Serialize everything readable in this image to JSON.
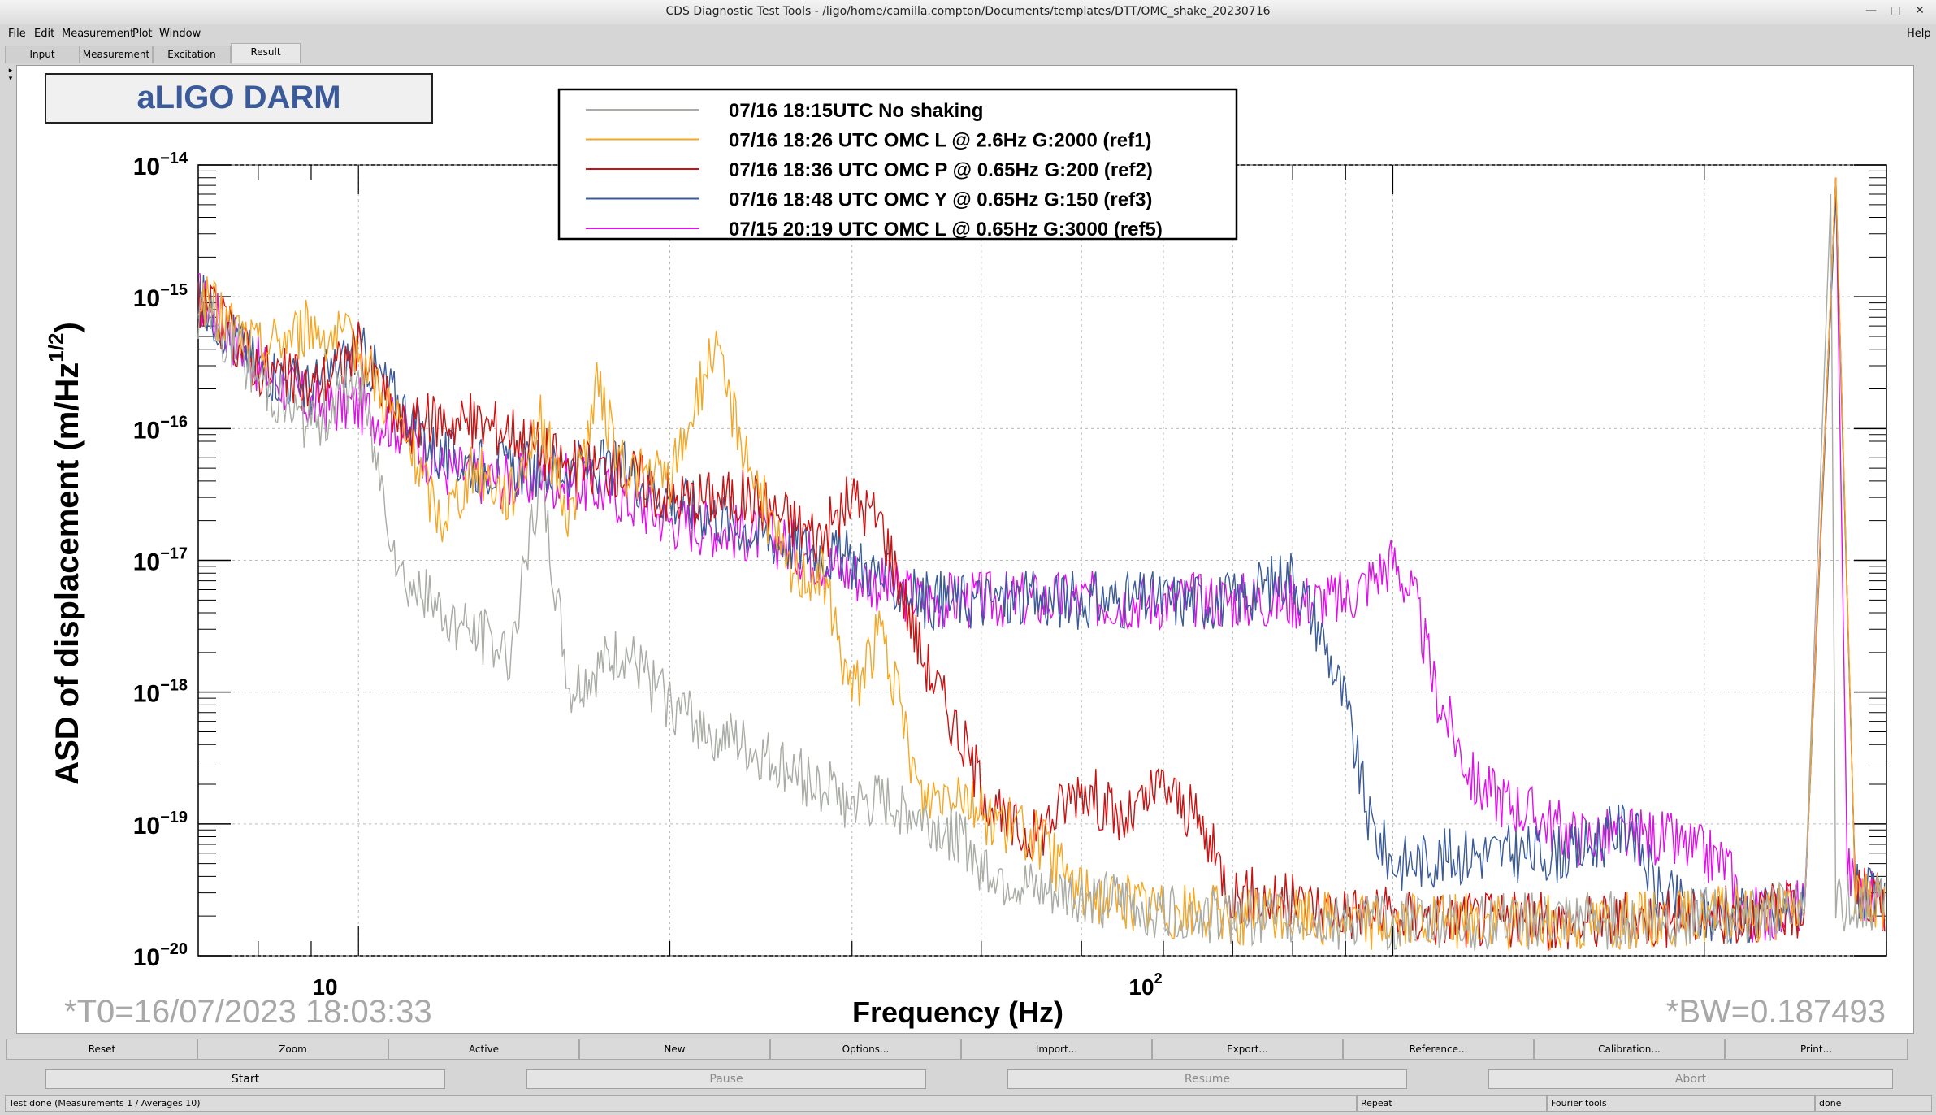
{
  "window": {
    "title": "CDS Diagnostic Test Tools - /ligo/home/camilla.compton/Documents/templates/DTT/OMC_shake_20230716",
    "btn_min": "—",
    "btn_max": "□",
    "btn_close": "✕"
  },
  "menubar": {
    "file": "File",
    "edit": "Edit",
    "measurement": "Measurement",
    "plot": "Plot",
    "window": "Window",
    "help": "Help"
  },
  "tabs": {
    "input": "Input",
    "measurement": "Measurement",
    "excitation": "Excitation",
    "result": "Result"
  },
  "plot": {
    "title_box": "aLIGO DARM",
    "xlabel": "Frequency (Hz)",
    "ylabel_main": "ASD of displacement (m/Hz",
    "ylabel_sup": "1/2",
    "ylabel_close": ")",
    "t0": "*T0=16/07/2023 18:03:33",
    "bw": "*BW=0.187493",
    "x_tick_10": "10",
    "x_tick_100_base": "10",
    "x_tick_100_exp": "2",
    "y_ticks": [
      {
        "exp": "−14",
        "v": -14
      },
      {
        "exp": "−15",
        "v": -15
      },
      {
        "exp": "−16",
        "v": -16
      },
      {
        "exp": "−17",
        "v": -17
      },
      {
        "exp": "−18",
        "v": -18
      },
      {
        "exp": "−19",
        "v": -19
      },
      {
        "exp": "−20",
        "v": -20
      }
    ],
    "y_tick_base": "10"
  },
  "chart_data": {
    "type": "line",
    "xscale": "log",
    "yscale": "log",
    "xlim": [
      7,
      300
    ],
    "ylim": [
      1e-20,
      1e-14
    ],
    "grid": true,
    "legend_position": "top-center",
    "series": [
      {
        "name": "07/16 18:15UTC No shaking",
        "color": "#a8aca4",
        "x": [
          7,
          8,
          9,
          10,
          11,
          12,
          14,
          15,
          16,
          18,
          20,
          22,
          25,
          28,
          30,
          33,
          38,
          40,
          45,
          50,
          60,
          70,
          80,
          90,
          100,
          120,
          150,
          200,
          250,
          265,
          268,
          272,
          280,
          300
        ],
        "y": [
          8e-16,
          2.5e-16,
          1e-16,
          2.5e-16,
          8e-18,
          4e-18,
          2e-18,
          4e-17,
          1e-18,
          2e-18,
          8e-19,
          5e-19,
          3e-19,
          2e-19,
          1.4e-19,
          1.4e-19,
          8e-20,
          5e-20,
          3e-20,
          2.8e-20,
          2.2e-20,
          2e-20,
          2e-20,
          1.8e-20,
          1.8e-20,
          1.8e-20,
          1.8e-20,
          2e-20,
          2.2e-20,
          6e-15,
          3e-20,
          2.5e-20,
          2.5e-20,
          2.5e-20
        ]
      },
      {
        "name": "07/16 18:26 UTC OMC L @ 2.6Hz G:2000 (ref1)",
        "color": "#f5a623",
        "x": [
          7,
          8,
          9,
          10,
          11,
          12,
          13,
          14,
          15,
          16,
          17,
          18,
          20,
          22,
          24,
          26,
          28,
          30,
          32,
          35,
          38,
          40,
          45,
          50,
          60,
          70,
          80,
          100,
          150,
          200,
          250,
          268,
          280,
          300
        ],
        "y": [
          1e-15,
          4e-16,
          6e-16,
          4e-16,
          1e-16,
          2e-17,
          5e-17,
          3e-17,
          1.2e-16,
          2e-17,
          2e-16,
          5e-17,
          4e-17,
          4e-16,
          5e-17,
          8e-18,
          8e-18,
          1e-18,
          3e-18,
          1.5e-19,
          2e-19,
          1.2e-19,
          8e-20,
          3e-20,
          2.2e-20,
          2e-20,
          2e-20,
          1.8e-20,
          1.8e-20,
          2e-20,
          2.2e-20,
          8e-15,
          3e-20,
          2.5e-20
        ]
      },
      {
        "name": "07/16 18:36 UTC OMC P @ 0.65Hz G:200 (ref2)",
        "color": "#cc1111",
        "x": [
          7,
          8,
          9,
          10,
          11,
          12,
          14,
          16,
          18,
          20,
          24,
          28,
          30,
          32,
          35,
          38,
          40,
          42,
          45,
          50,
          55,
          60,
          65,
          70,
          80,
          100,
          150,
          200,
          250,
          268,
          280,
          300
        ],
        "y": [
          1e-15,
          3e-16,
          2e-16,
          4e-16,
          1e-16,
          1.2e-16,
          1e-16,
          5e-17,
          5e-17,
          3e-17,
          3e-17,
          1.5e-17,
          3e-17,
          2e-17,
          2e-18,
          5e-19,
          2e-19,
          1e-19,
          8e-20,
          2e-19,
          1e-19,
          2e-19,
          1e-19,
          3e-20,
          2.5e-20,
          2e-20,
          1.8e-20,
          2e-20,
          2.2e-20,
          8e-15,
          3e-20,
          2.5e-20
        ]
      },
      {
        "name": "07/16 18:48 UTC OMC Y @ 0.65Hz G:150 (ref3)",
        "color": "#3a5a9a",
        "x": [
          7,
          8,
          9,
          10,
          11,
          12,
          14,
          16,
          18,
          20,
          25,
          30,
          35,
          40,
          50,
          60,
          70,
          80,
          85,
          90,
          95,
          100,
          120,
          150,
          170,
          180,
          200,
          250,
          268,
          280,
          300
        ],
        "y": [
          1e-15,
          3e-16,
          2e-16,
          4e-16,
          1.5e-16,
          6e-17,
          5e-17,
          5e-17,
          5e-17,
          3e-17,
          1.5e-17,
          1e-17,
          5e-18,
          5e-18,
          5e-18,
          5e-18,
          5e-18,
          8e-18,
          3e-18,
          8e-19,
          1e-19,
          5e-20,
          6e-20,
          6e-20,
          1e-19,
          3e-20,
          2e-20,
          2.2e-20,
          6e-15,
          3e-20,
          2.5e-20
        ]
      },
      {
        "name": "07/15 20:19 UTC OMC L @ 0.65Hz G:3000 (ref5)",
        "color": "#e010e8",
        "x": [
          7,
          8,
          9,
          10,
          11,
          12,
          14,
          16,
          18,
          20,
          25,
          30,
          35,
          40,
          50,
          60,
          70,
          80,
          90,
          100,
          105,
          110,
          120,
          150,
          180,
          210,
          220,
          250,
          268,
          275,
          280,
          300
        ],
        "y": [
          1e-15,
          3e-16,
          1.5e-16,
          1.5e-16,
          1e-16,
          5e-17,
          4e-17,
          4e-17,
          3e-17,
          2e-17,
          1.5e-17,
          8e-18,
          5e-18,
          5e-18,
          5e-18,
          5e-18,
          5e-18,
          5e-18,
          5e-18,
          1e-17,
          5e-18,
          1e-18,
          2e-19,
          8e-20,
          8e-20,
          5e-20,
          2e-20,
          2.5e-20,
          8e-15,
          5e-20,
          3e-20,
          2.5e-20
        ]
      }
    ]
  },
  "bottom_buttons": [
    "Reset",
    "Zoom",
    "Active",
    "New",
    "Options...",
    "Import...",
    "Export...",
    "Reference...",
    "Calibration...",
    "Print..."
  ],
  "controls": {
    "start": "Start",
    "pause": "Pause",
    "resume": "Resume",
    "abort": "Abort"
  },
  "status": {
    "main": "Test done (Measurements 1 / Averages 10)",
    "repeat": "Repeat",
    "fourier": "Fourier tools",
    "done": "done"
  }
}
